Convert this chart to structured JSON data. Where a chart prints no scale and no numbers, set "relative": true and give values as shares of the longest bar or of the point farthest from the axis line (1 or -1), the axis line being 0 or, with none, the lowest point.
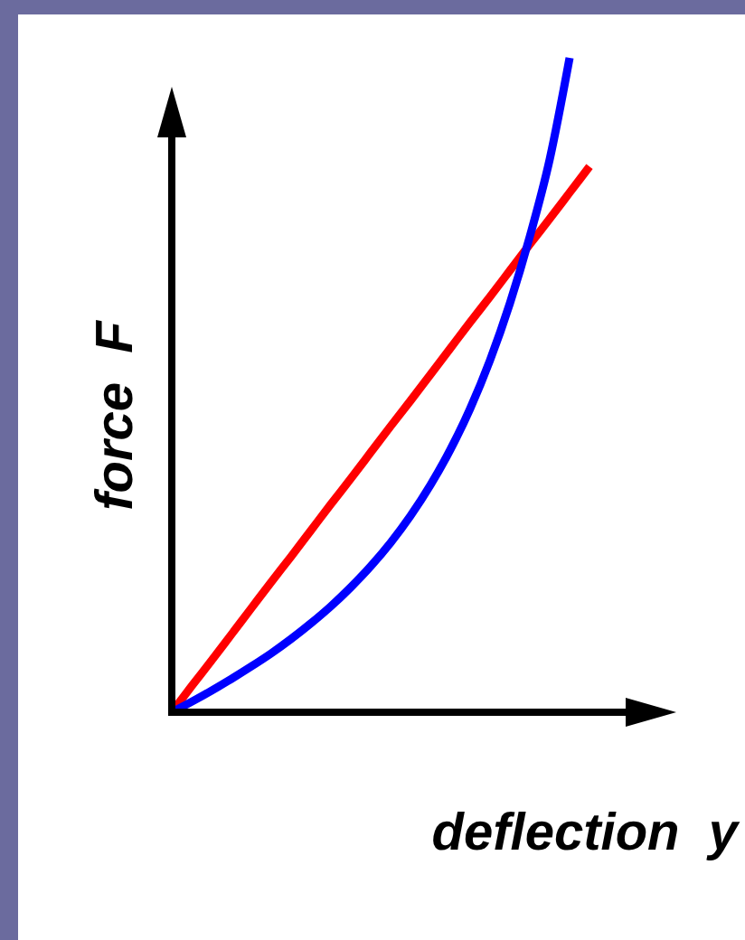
{
  "chart_data": {
    "type": "line",
    "relative": true,
    "xlabel": "deflection  y",
    "ylabel": "force  F",
    "categories": [
      null,
      null,
      null,
      null,
      null,
      null,
      null,
      null,
      null,
      null,
      null,
      null,
      null,
      null,
      null,
      null,
      null,
      null,
      null,
      null,
      null,
      null
    ],
    "series": [
      {
        "color": "#ff0000",
        "values": [
          0,
          0.04,
          0.079,
          0.119,
          0.159,
          0.199,
          0.238,
          0.278,
          0.318,
          0.357,
          0.397,
          0.437,
          0.476,
          0.516,
          0.556,
          0.596,
          0.635,
          0.675,
          0.715,
          0.754,
          0.794,
          0.834
        ]
      },
      {
        "color": "#0000ff",
        "values": [
          0,
          0.016,
          0.033,
          0.051,
          0.07,
          0.09,
          0.112,
          0.136,
          0.162,
          0.191,
          0.223,
          0.259,
          0.3,
          0.347,
          0.401,
          0.464,
          0.538,
          0.625,
          0.727,
          0.845,
          1,
          null
        ]
      }
    ]
  }
}
